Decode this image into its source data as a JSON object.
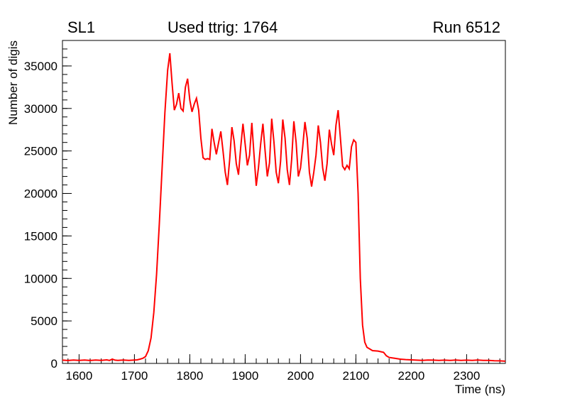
{
  "header": {
    "left_label": "SL1",
    "center_label": "Used ttrig: 1764",
    "right_label": "Run 6512"
  },
  "colors": {
    "line": "#ff0000",
    "axis": "#000000",
    "background": "#ffffff"
  },
  "chart_data": {
    "type": "line",
    "title": "Used ttrig: 1764",
    "xlabel": "Time (ns)",
    "ylabel": "Number of digis",
    "xlim": [
      1570,
      2370
    ],
    "ylim": [
      0,
      38000
    ],
    "x_ticks": [
      1600,
      1700,
      1800,
      1900,
      2000,
      2100,
      2200,
      2300
    ],
    "y_ticks": [
      0,
      5000,
      10000,
      15000,
      20000,
      25000,
      30000,
      35000
    ],
    "x_minor_step": 20,
    "y_minor_step": 1000,
    "grid": false,
    "legend": "none",
    "series": [
      {
        "name": "digis",
        "color": "#ff0000",
        "points": [
          [
            1570,
            380
          ],
          [
            1580,
            340
          ],
          [
            1590,
            400
          ],
          [
            1600,
            350
          ],
          [
            1610,
            390
          ],
          [
            1620,
            340
          ],
          [
            1630,
            400
          ],
          [
            1640,
            360
          ],
          [
            1650,
            420
          ],
          [
            1655,
            350
          ],
          [
            1660,
            500
          ],
          [
            1665,
            380
          ],
          [
            1670,
            350
          ],
          [
            1680,
            400
          ],
          [
            1690,
            360
          ],
          [
            1700,
            400
          ],
          [
            1705,
            420
          ],
          [
            1710,
            500
          ],
          [
            1715,
            600
          ],
          [
            1720,
            800
          ],
          [
            1725,
            1500
          ],
          [
            1730,
            3000
          ],
          [
            1735,
            6000
          ],
          [
            1740,
            10500
          ],
          [
            1745,
            16500
          ],
          [
            1750,
            23000
          ],
          [
            1755,
            29500
          ],
          [
            1760,
            34500
          ],
          [
            1764,
            36500
          ],
          [
            1768,
            33000
          ],
          [
            1772,
            29800
          ],
          [
            1776,
            30500
          ],
          [
            1780,
            31800
          ],
          [
            1784,
            30000
          ],
          [
            1788,
            29700
          ],
          [
            1792,
            32500
          ],
          [
            1796,
            33500
          ],
          [
            1800,
            31000
          ],
          [
            1804,
            29600
          ],
          [
            1808,
            30500
          ],
          [
            1812,
            31200
          ],
          [
            1816,
            29800
          ],
          [
            1820,
            26500
          ],
          [
            1824,
            24200
          ],
          [
            1828,
            24000
          ],
          [
            1832,
            24100
          ],
          [
            1836,
            24000
          ],
          [
            1840,
            27600
          ],
          [
            1844,
            26000
          ],
          [
            1848,
            24600
          ],
          [
            1852,
            26000
          ],
          [
            1856,
            27300
          ],
          [
            1860,
            25000
          ],
          [
            1864,
            22500
          ],
          [
            1868,
            21000
          ],
          [
            1872,
            24000
          ],
          [
            1876,
            27800
          ],
          [
            1880,
            26200
          ],
          [
            1884,
            23500
          ],
          [
            1888,
            22200
          ],
          [
            1892,
            25500
          ],
          [
            1896,
            28200
          ],
          [
            1900,
            25800
          ],
          [
            1904,
            23300
          ],
          [
            1908,
            24500
          ],
          [
            1912,
            28300
          ],
          [
            1916,
            24500
          ],
          [
            1920,
            20900
          ],
          [
            1924,
            23000
          ],
          [
            1928,
            25800
          ],
          [
            1932,
            28200
          ],
          [
            1936,
            25000
          ],
          [
            1940,
            22000
          ],
          [
            1944,
            23600
          ],
          [
            1948,
            28800
          ],
          [
            1952,
            26000
          ],
          [
            1956,
            22500
          ],
          [
            1960,
            21200
          ],
          [
            1964,
            23800
          ],
          [
            1968,
            28700
          ],
          [
            1972,
            26500
          ],
          [
            1976,
            22800
          ],
          [
            1980,
            21000
          ],
          [
            1984,
            24000
          ],
          [
            1988,
            28500
          ],
          [
            1992,
            26000
          ],
          [
            1996,
            22000
          ],
          [
            2000,
            23000
          ],
          [
            2004,
            25500
          ],
          [
            2008,
            28400
          ],
          [
            2012,
            26500
          ],
          [
            2016,
            22500
          ],
          [
            2020,
            20800
          ],
          [
            2024,
            22500
          ],
          [
            2028,
            24500
          ],
          [
            2032,
            28000
          ],
          [
            2036,
            26000
          ],
          [
            2040,
            23000
          ],
          [
            2044,
            21500
          ],
          [
            2048,
            23500
          ],
          [
            2052,
            27500
          ],
          [
            2056,
            25800
          ],
          [
            2060,
            24500
          ],
          [
            2064,
            28000
          ],
          [
            2068,
            29800
          ],
          [
            2072,
            26500
          ],
          [
            2076,
            23200
          ],
          [
            2080,
            22800
          ],
          [
            2084,
            23300
          ],
          [
            2088,
            22900
          ],
          [
            2092,
            25500
          ],
          [
            2096,
            26300
          ],
          [
            2100,
            26000
          ],
          [
            2104,
            20000
          ],
          [
            2108,
            10000
          ],
          [
            2112,
            4500
          ],
          [
            2116,
            2500
          ],
          [
            2120,
            1900
          ],
          [
            2125,
            1700
          ],
          [
            2130,
            1500
          ],
          [
            2140,
            1450
          ],
          [
            2150,
            1300
          ],
          [
            2155,
            900
          ],
          [
            2160,
            700
          ],
          [
            2170,
            600
          ],
          [
            2180,
            500
          ],
          [
            2190,
            450
          ],
          [
            2200,
            420
          ],
          [
            2210,
            380
          ],
          [
            2220,
            360
          ],
          [
            2230,
            400
          ],
          [
            2240,
            380
          ],
          [
            2250,
            350
          ],
          [
            2260,
            380
          ],
          [
            2270,
            350
          ],
          [
            2280,
            400
          ],
          [
            2290,
            360
          ],
          [
            2300,
            380
          ],
          [
            2310,
            350
          ],
          [
            2320,
            400
          ],
          [
            2330,
            360
          ],
          [
            2340,
            350
          ],
          [
            2350,
            320
          ],
          [
            2360,
            300
          ],
          [
            2370,
            260
          ]
        ]
      }
    ]
  }
}
